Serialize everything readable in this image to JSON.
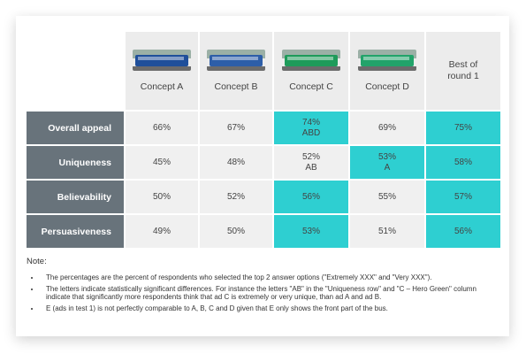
{
  "columns": [
    {
      "label": "Concept A",
      "bus_color": "#1f4f9a"
    },
    {
      "label": "Concept B",
      "bus_color": "#2d5ea8"
    },
    {
      "label": "Concept C",
      "bus_color": "#1e9b5a"
    },
    {
      "label": "Concept D",
      "bus_color": "#22a36a"
    }
  ],
  "best_label_line1": "Best of",
  "best_label_line2": "round 1",
  "rows": [
    {
      "label": "Overall appeal",
      "cells": [
        {
          "value": "66%",
          "sig": "",
          "highlight": false
        },
        {
          "value": "67%",
          "sig": "",
          "highlight": false
        },
        {
          "value": "74%",
          "sig": "ABD",
          "highlight": true
        },
        {
          "value": "69%",
          "sig": "",
          "highlight": false
        },
        {
          "value": "75%",
          "sig": "",
          "highlight": true
        }
      ]
    },
    {
      "label": "Uniqueness",
      "cells": [
        {
          "value": "45%",
          "sig": "",
          "highlight": false
        },
        {
          "value": "48%",
          "sig": "",
          "highlight": false
        },
        {
          "value": "52%",
          "sig": "AB",
          "highlight": false
        },
        {
          "value": "53%",
          "sig": "A",
          "highlight": true
        },
        {
          "value": "58%",
          "sig": "",
          "highlight": true
        }
      ]
    },
    {
      "label": "Believability",
      "cells": [
        {
          "value": "50%",
          "sig": "",
          "highlight": false
        },
        {
          "value": "52%",
          "sig": "",
          "highlight": false
        },
        {
          "value": "56%",
          "sig": "",
          "highlight": true
        },
        {
          "value": "55%",
          "sig": "",
          "highlight": false
        },
        {
          "value": "57%",
          "sig": "",
          "highlight": true
        }
      ]
    },
    {
      "label": "Persuasiveness",
      "cells": [
        {
          "value": "49%",
          "sig": "",
          "highlight": false
        },
        {
          "value": "50%",
          "sig": "",
          "highlight": false
        },
        {
          "value": "53%",
          "sig": "",
          "highlight": true
        },
        {
          "value": "51%",
          "sig": "",
          "highlight": false
        },
        {
          "value": "56%",
          "sig": "",
          "highlight": true
        }
      ]
    }
  ],
  "notes": {
    "title": "Note:",
    "items": [
      "The percentages are the percent of respondents who selected the top 2 answer options (\"Extremely XXX\" and \"Very XXX\").",
      "The letters indicate statistically significant differences. For instance the letters \"AB\" in the \"Uniqueness row\" and \"C – Hero Green\" column indicate that significantly more respondents think that ad C is extremely or very unique, than ad A and ad B.",
      "E (ads in test 1) is not perfectly comparable to A, B, C and D given that E only shows the front part of the bus."
    ]
  },
  "colors": {
    "highlight": "#2ecfd1",
    "row_label_bg": "#68737b",
    "cell_bg": "#f0f0f0",
    "header_bg": "#ececec"
  }
}
